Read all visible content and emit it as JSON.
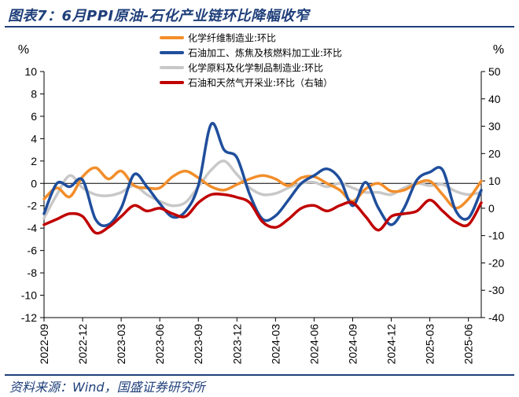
{
  "page": {
    "title": "图表7：6月PPI原油-石化产业链环比降幅收窄",
    "source": "资料来源：Wind，国盛证券研究所"
  },
  "chart_data": {
    "type": "line",
    "left_unit": "%",
    "right_unit": "%",
    "x_ticks": [
      "2022-09",
      "2022-12",
      "2023-03",
      "2023-06",
      "2023-09",
      "2023-12",
      "2024-03",
      "2024-06",
      "2024-09",
      "2024-12",
      "2025-03",
      "2025-06"
    ],
    "ylim_left": [
      -12,
      10
    ],
    "yticks_left": [
      -12,
      -10,
      -8,
      -6,
      -4,
      -2,
      0,
      2,
      4,
      6,
      8,
      10
    ],
    "ylim_right": [
      -40,
      50
    ],
    "yticks_right": [
      -40,
      -30,
      -20,
      -10,
      0,
      10,
      20,
      30,
      40,
      50
    ],
    "legend_position": "top-center",
    "series": [
      {
        "name": "化学纤维制造业:环比",
        "color": "#f28e2b",
        "axis": "left",
        "values": [
          -1.4,
          -0.4,
          -1.2,
          0.6,
          1.4,
          0.4,
          1.1,
          -0.2,
          -0.4,
          -0.4,
          0.6,
          1.1,
          0.5,
          -0.3,
          -0.6,
          -0.1,
          0.4,
          0.7,
          0.4,
          -0.2,
          0.5,
          0.6,
          0.0,
          -0.6,
          -1.6,
          -0.5,
          0.0,
          -0.7,
          -0.6,
          0.0,
          0.2,
          -1.0,
          -2.2,
          -1.4,
          0.2
        ]
      },
      {
        "name": "石油加工、炼焦及核燃料加工业:环比",
        "color": "#1f4e9c",
        "axis": "left",
        "values": [
          -2.7,
          0.0,
          -0.3,
          0.3,
          -3.2,
          -3.7,
          -2.2,
          0.8,
          -0.3,
          -1.8,
          -3.0,
          -2.5,
          -0.2,
          5.3,
          3.0,
          2.3,
          -1.0,
          -3.2,
          -2.9,
          -1.5,
          0.0,
          0.7,
          1.3,
          0.4,
          -2.0,
          0.1,
          -2.2,
          -3.7,
          -2.2,
          0.3,
          1.0,
          1.2,
          -2.4,
          -3.1,
          -0.6
        ]
      },
      {
        "name": "化学原料及化学制品制造业:环比",
        "color": "#c8c8c8",
        "axis": "left",
        "values": [
          -3.1,
          -1.0,
          0.7,
          -0.4,
          -1.0,
          -1.1,
          -0.8,
          -0.2,
          -1.0,
          -1.6,
          -2.0,
          -1.7,
          -0.3,
          1.2,
          2.0,
          0.8,
          -0.4,
          -1.0,
          -0.9,
          -0.4,
          0.0,
          0.1,
          -0.3,
          0.0,
          -0.4,
          -0.8,
          -0.8,
          -1.0,
          -0.4,
          0.0,
          -0.2,
          -0.1,
          -0.7,
          -1.0,
          -0.8
        ]
      },
      {
        "name": "石油和天然气开采业:环比（右轴）",
        "color": "#c00000",
        "axis": "right",
        "values": [
          -6,
          -4,
          -2,
          -3,
          -9,
          -7,
          -3,
          1,
          -1,
          0,
          -2,
          -3,
          2,
          5,
          5,
          4,
          2,
          -5,
          -7,
          -4,
          0,
          1,
          -1,
          1,
          2,
          -3,
          -8,
          -3,
          -2,
          -1,
          3,
          -1,
          -5,
          -6,
          2
        ]
      }
    ]
  }
}
